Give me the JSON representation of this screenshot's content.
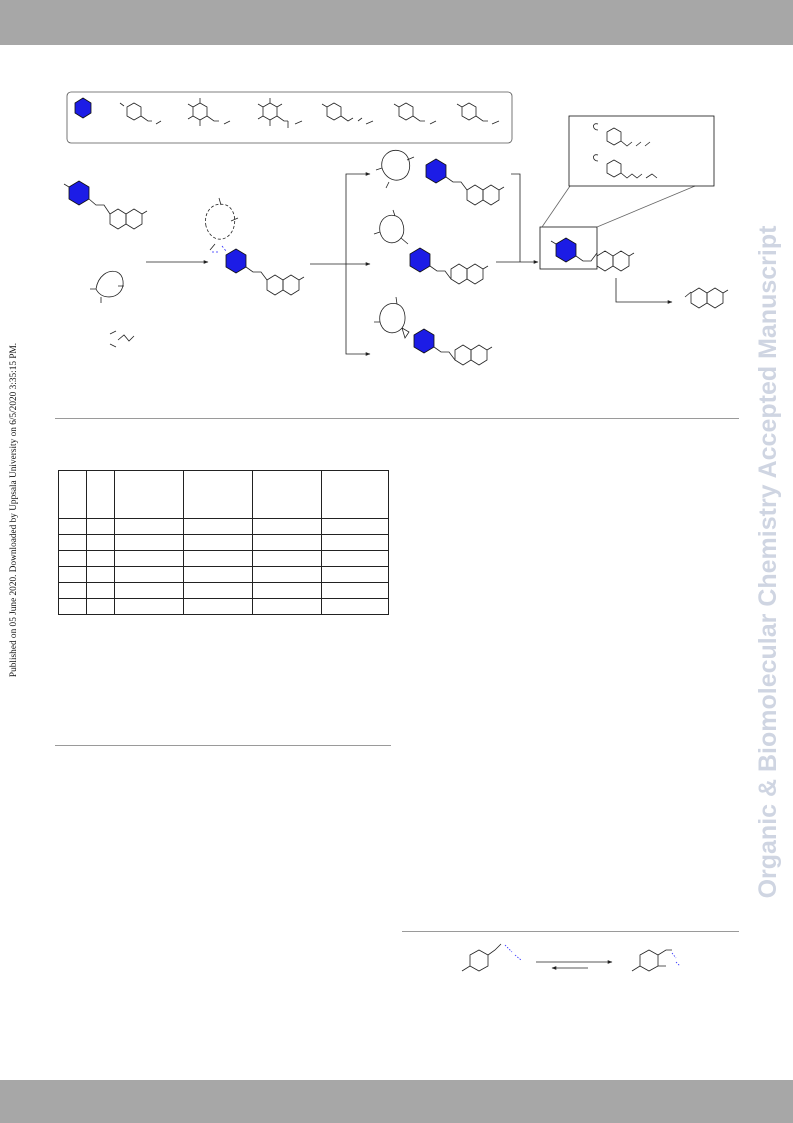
{
  "page": {
    "sidebar_note": "Published on 05 June 2020. Downloaded by Uppsala University on 6/5/2020 3:35:15 PM.",
    "watermark": "Organic & Biomolecular Chemistry Accepted Manuscript"
  },
  "colors": {
    "band": "#a7a7a7",
    "watermark": "#cfd5e2",
    "aromatic_ring_fill": "#1c1ce6",
    "rule": "#9a9a9a"
  },
  "table": {
    "columns": 6,
    "body_rows": 6
  }
}
